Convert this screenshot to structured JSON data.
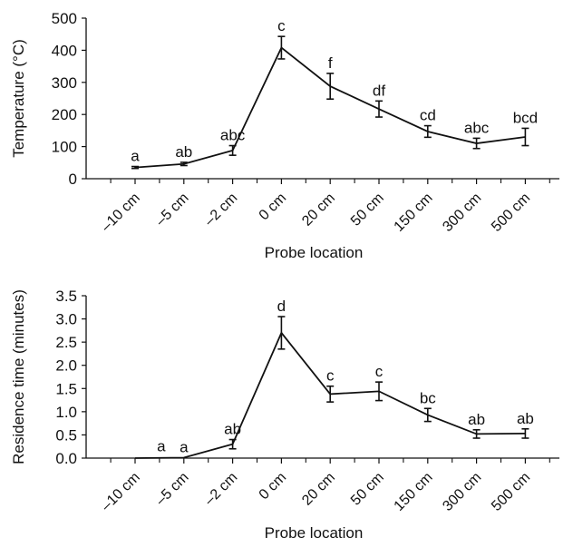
{
  "chart_data": [
    {
      "type": "line",
      "xlabel": "Probe location",
      "ylabel": "Temperature (°C)",
      "ylim": [
        0,
        500
      ],
      "yticks": [
        "0",
        "100",
        "200",
        "300",
        "400",
        "500"
      ],
      "categories": [
        "–10 cm",
        "–5 cm",
        "–2 cm",
        "0 cm",
        "20 cm",
        "50 cm",
        "150 cm",
        "300 cm",
        "500 cm"
      ],
      "series": [
        {
          "values": [
            35,
            46,
            88,
            408,
            288,
            217,
            147,
            110,
            130
          ],
          "error": [
            3,
            5,
            15,
            35,
            40,
            25,
            18,
            16,
            27
          ],
          "labels": [
            "a",
            "ab",
            "abc",
            "c",
            "f",
            "df",
            "cd",
            "abc",
            "bcd"
          ]
        }
      ],
      "grid": false,
      "error_bars": true
    },
    {
      "type": "line",
      "xlabel": "Probe location",
      "ylabel": "Residence time (minutes)",
      "ylim": [
        0,
        3.5
      ],
      "yticks": [
        "0.0",
        "0.5",
        "1.0",
        "1.5",
        "2.0",
        "2.5",
        "3.0",
        "3.5"
      ],
      "categories": [
        "–10 cm",
        "–5 cm",
        "–2 cm",
        "0 cm",
        "20 cm",
        "50 cm",
        "150 cm",
        "300 cm",
        "500 cm"
      ],
      "series": [
        {
          "values": [
            0,
            0.01,
            0.3,
            2.7,
            1.38,
            1.44,
            0.93,
            0.52,
            0.53
          ],
          "error": [
            0,
            0,
            0.1,
            0.35,
            0.17,
            0.2,
            0.14,
            0.09,
            0.1
          ],
          "labels": [
            "",
            "a",
            "ab",
            "d",
            "c",
            "c",
            "bc",
            "ab",
            "ab"
          ],
          "extra_labels": [
            "a"
          ]
        }
      ],
      "grid": false,
      "error_bars": true
    }
  ]
}
